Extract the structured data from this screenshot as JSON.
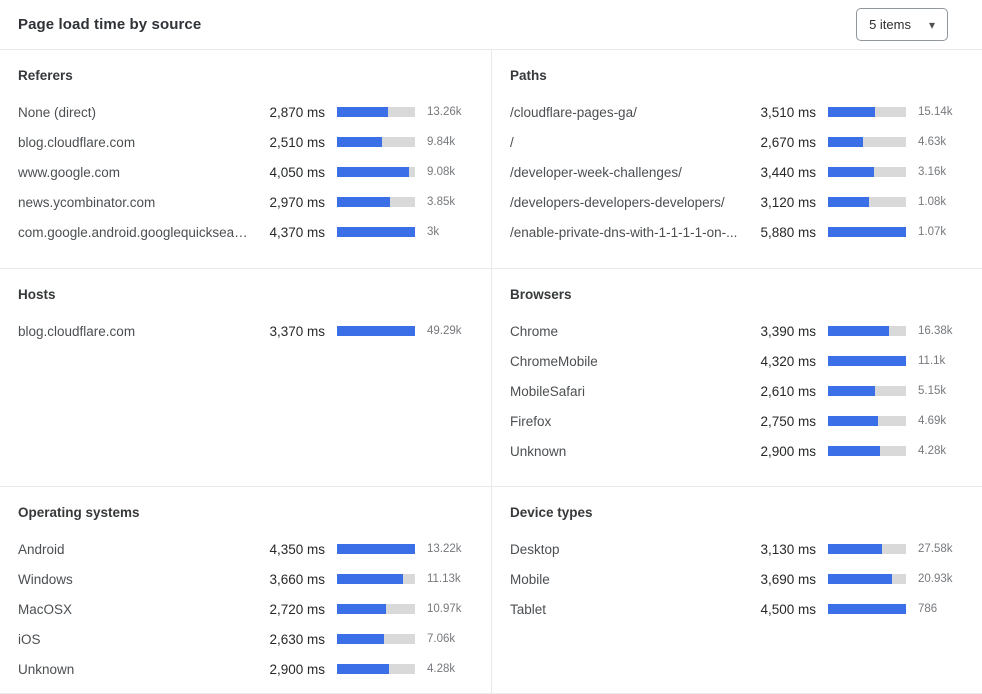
{
  "header": {
    "title": "Page load time by source",
    "items_dropdown": {
      "value": "5 items",
      "chevron": "▾"
    }
  },
  "colors": {
    "bar_fill": "#3b6fe8",
    "bar_track": "#d9d9d9",
    "divider": "#e9e9e9"
  },
  "chart_data": [
    {
      "type": "bar",
      "orientation": "horizontal",
      "title": "Referers",
      "unit": "ms",
      "bar_scale": "value relative to panel max",
      "categories": [
        "None (direct)",
        "blog.cloudflare.com",
        "www.google.com",
        "news.ycombinator.com",
        "com.google.android.googlequicksearc..."
      ],
      "values_ms": [
        2870,
        2510,
        4050,
        2970,
        4370
      ],
      "value_labels": [
        "2,870 ms",
        "2,510 ms",
        "4,050 ms",
        "2,970 ms",
        "4,370 ms"
      ],
      "count_labels": [
        "13.26k",
        "9.84k",
        "9.08k",
        "3.85k",
        "3k"
      ]
    },
    {
      "type": "bar",
      "orientation": "horizontal",
      "title": "Paths",
      "unit": "ms",
      "bar_scale": "value relative to panel max",
      "categories": [
        "/cloudflare-pages-ga/",
        "/",
        "/developer-week-challenges/",
        "/developers-developers-developers/",
        "/enable-private-dns-with-1-1-1-1-on-..."
      ],
      "values_ms": [
        3510,
        2670,
        3440,
        3120,
        5880
      ],
      "value_labels": [
        "3,510 ms",
        "2,670 ms",
        "3,440 ms",
        "3,120 ms",
        "5,880 ms"
      ],
      "count_labels": [
        "15.14k",
        "4.63k",
        "3.16k",
        "1.08k",
        "1.07k"
      ]
    },
    {
      "type": "bar",
      "orientation": "horizontal",
      "title": "Hosts",
      "unit": "ms",
      "bar_scale": "value relative to panel max",
      "categories": [
        "blog.cloudflare.com"
      ],
      "values_ms": [
        3370
      ],
      "value_labels": [
        "3,370 ms"
      ],
      "count_labels": [
        "49.29k"
      ]
    },
    {
      "type": "bar",
      "orientation": "horizontal",
      "title": "Browsers",
      "unit": "ms",
      "bar_scale": "value relative to panel max",
      "categories": [
        "Chrome",
        "ChromeMobile",
        "MobileSafari",
        "Firefox",
        "Unknown"
      ],
      "values_ms": [
        3390,
        4320,
        2610,
        2750,
        2900
      ],
      "value_labels": [
        "3,390 ms",
        "4,320 ms",
        "2,610 ms",
        "2,750 ms",
        "2,900 ms"
      ],
      "count_labels": [
        "16.38k",
        "11.1k",
        "5.15k",
        "4.69k",
        "4.28k"
      ]
    },
    {
      "type": "bar",
      "orientation": "horizontal",
      "title": "Operating systems",
      "unit": "ms",
      "bar_scale": "value relative to panel max",
      "categories": [
        "Android",
        "Windows",
        "MacOSX",
        "iOS",
        "Unknown"
      ],
      "values_ms": [
        4350,
        3660,
        2720,
        2630,
        2900
      ],
      "value_labels": [
        "4,350 ms",
        "3,660 ms",
        "2,720 ms",
        "2,630 ms",
        "2,900 ms"
      ],
      "count_labels": [
        "13.22k",
        "11.13k",
        "10.97k",
        "7.06k",
        "4.28k"
      ]
    },
    {
      "type": "bar",
      "orientation": "horizontal",
      "title": "Device types",
      "unit": "ms",
      "bar_scale": "value relative to panel max",
      "categories": [
        "Desktop",
        "Mobile",
        "Tablet"
      ],
      "values_ms": [
        3130,
        3690,
        4500
      ],
      "value_labels": [
        "3,130 ms",
        "3,690 ms",
        "4,500 ms"
      ],
      "count_labels": [
        "27.58k",
        "20.93k",
        "786"
      ]
    }
  ]
}
